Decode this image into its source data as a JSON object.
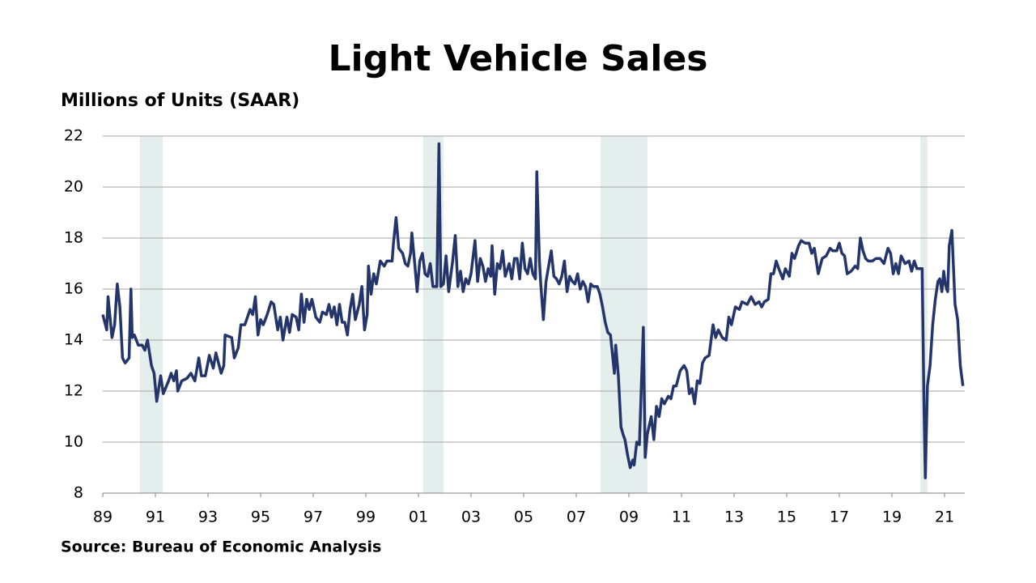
{
  "chart_data": {
    "type": "line",
    "title": "Light Vehicle Sales",
    "subtitle": "Millions of Units (SAAR)",
    "source": "Source: Bureau of Economic Analysis",
    "xlim": [
      1989,
      2021.77
    ],
    "ylim": [
      8,
      22
    ],
    "yticks": [
      8,
      10,
      12,
      14,
      16,
      18,
      20,
      22
    ],
    "xticks": [
      {
        "value": 1989,
        "label": "89"
      },
      {
        "value": 1991,
        "label": "91"
      },
      {
        "value": 1993,
        "label": "93"
      },
      {
        "value": 1995,
        "label": "95"
      },
      {
        "value": 1997,
        "label": "97"
      },
      {
        "value": 1999,
        "label": "99"
      },
      {
        "value": 2001,
        "label": "01"
      },
      {
        "value": 2003,
        "label": "03"
      },
      {
        "value": 2005,
        "label": "05"
      },
      {
        "value": 2007,
        "label": "07"
      },
      {
        "value": 2009,
        "label": "09"
      },
      {
        "value": 2011,
        "label": "11"
      },
      {
        "value": 2013,
        "label": "13"
      },
      {
        "value": 2015,
        "label": "15"
      },
      {
        "value": 2017,
        "label": "17"
      },
      {
        "value": 2019,
        "label": "19"
      },
      {
        "value": 2021,
        "label": "21"
      }
    ],
    "grid": true,
    "color": "#23356b",
    "recession_color": "#e4eeec",
    "recessions": [
      [
        1990.41,
        1991.28
      ],
      [
        2001.18,
        2001.95
      ],
      [
        2007.92,
        2009.71
      ],
      [
        2020.08,
        2020.35
      ]
    ],
    "x": [
      1989.0,
      1989.15,
      1989.2,
      1989.35,
      1989.45,
      1989.55,
      1989.65,
      1989.75,
      1989.85,
      1990.0,
      1990.07,
      1990.12,
      1990.2,
      1990.35,
      1990.5,
      1990.6,
      1990.7,
      1990.85,
      1990.95,
      1991.05,
      1991.2,
      1991.3,
      1991.5,
      1991.6,
      1991.7,
      1991.8,
      1991.85,
      1992.0,
      1992.2,
      1992.35,
      1992.5,
      1992.65,
      1992.75,
      1992.9,
      1993.05,
      1993.2,
      1993.3,
      1993.5,
      1993.6,
      1993.65,
      1993.9,
      1994.0,
      1994.15,
      1994.25,
      1994.4,
      1994.6,
      1994.7,
      1994.8,
      1994.9,
      1995.0,
      1995.1,
      1995.25,
      1995.4,
      1995.5,
      1995.65,
      1995.75,
      1995.85,
      1996.0,
      1996.1,
      1996.2,
      1996.35,
      1996.45,
      1996.55,
      1996.65,
      1996.75,
      1996.85,
      1996.95,
      1997.1,
      1997.25,
      1997.35,
      1997.5,
      1997.6,
      1997.7,
      1997.8,
      1997.9,
      1998.0,
      1998.1,
      1998.2,
      1998.3,
      1998.4,
      1998.5,
      1998.6,
      1998.75,
      1998.85,
      1998.95,
      1999.05,
      1999.1,
      1999.2,
      1999.3,
      1999.4,
      1999.55,
      1999.7,
      1999.8,
      2000.0,
      2000.05,
      2000.15,
      2000.25,
      2000.4,
      2000.5,
      2000.6,
      2000.7,
      2000.75,
      2000.85,
      2000.95,
      2001.05,
      2001.15,
      2001.25,
      2001.35,
      2001.45,
      2001.55,
      2001.7,
      2001.78,
      2001.85,
      2001.95,
      2002.05,
      2002.15,
      2002.3,
      2002.4,
      2002.5,
      2002.6,
      2002.7,
      2002.8,
      2002.9,
      2003.0,
      2003.15,
      2003.25,
      2003.35,
      2003.45,
      2003.55,
      2003.65,
      2003.75,
      2003.8,
      2003.9,
      2004.0,
      2004.1,
      2004.2,
      2004.3,
      2004.45,
      2004.55,
      2004.65,
      2004.75,
      2004.85,
      2004.95,
      2005.05,
      2005.15,
      2005.25,
      2005.35,
      2005.45,
      2005.5,
      2005.6,
      2005.65,
      2005.75,
      2005.85,
      2005.95,
      2006.05,
      2006.15,
      2006.25,
      2006.35,
      2006.45,
      2006.55,
      2006.65,
      2006.75,
      2006.85,
      2006.95,
      2007.05,
      2007.15,
      2007.25,
      2007.35,
      2007.45,
      2007.55,
      2007.65,
      2007.8,
      2007.9,
      2008.0,
      2008.1,
      2008.2,
      2008.3,
      2008.38,
      2008.45,
      2008.5,
      2008.6,
      2008.7,
      2008.78,
      2008.85,
      2008.95,
      2009.05,
      2009.15,
      2009.2,
      2009.3,
      2009.4,
      2009.55,
      2009.62,
      2009.7,
      2009.85,
      2009.95,
      2010.05,
      2010.15,
      2010.25,
      2010.35,
      2010.5,
      2010.6,
      2010.7,
      2010.8,
      2010.95,
      2011.1,
      2011.2,
      2011.3,
      2011.4,
      2011.5,
      2011.6,
      2011.7,
      2011.8,
      2011.9,
      2012.05,
      2012.2,
      2012.3,
      2012.4,
      2012.55,
      2012.7,
      2012.8,
      2012.9,
      2013.05,
      2013.2,
      2013.3,
      2013.5,
      2013.65,
      2013.8,
      2013.95,
      2014.05,
      2014.15,
      2014.3,
      2014.4,
      2014.5,
      2014.6,
      2014.7,
      2014.85,
      2014.95,
      2015.1,
      2015.2,
      2015.3,
      2015.45,
      2015.55,
      2015.7,
      2015.85,
      2015.95,
      2016.05,
      2016.2,
      2016.35,
      2016.5,
      2016.65,
      2016.75,
      2016.9,
      2017.0,
      2017.1,
      2017.2,
      2017.3,
      2017.45,
      2017.6,
      2017.7,
      2017.8,
      2017.9,
      2018.0,
      2018.1,
      2018.25,
      2018.4,
      2018.55,
      2018.7,
      2018.85,
      2018.95,
      2019.05,
      2019.15,
      2019.25,
      2019.35,
      2019.5,
      2019.65,
      2019.75,
      2019.85,
      2019.95,
      2020.05,
      2020.15,
      2020.22,
      2020.27,
      2020.35,
      2020.45,
      2020.55,
      2020.65,
      2020.75,
      2020.82,
      2020.9,
      2020.97,
      2021.03,
      2021.08,
      2021.12,
      2021.18,
      2021.28,
      2021.4,
      2021.5,
      2021.6,
      2021.7
    ],
    "values": [
      15.0,
      14.4,
      15.7,
      14.1,
      14.6,
      16.2,
      15.3,
      13.3,
      13.1,
      13.3,
      16.0,
      14.1,
      14.2,
      13.8,
      13.8,
      13.6,
      14.0,
      13.0,
      12.7,
      11.6,
      12.6,
      11.9,
      12.4,
      12.7,
      12.4,
      12.8,
      12.0,
      12.4,
      12.5,
      12.7,
      12.4,
      13.3,
      12.6,
      12.6,
      13.4,
      12.9,
      13.5,
      12.7,
      13.0,
      14.2,
      14.1,
      13.3,
      13.7,
      14.6,
      14.6,
      15.2,
      15.0,
      15.7,
      14.2,
      14.8,
      14.6,
      15.0,
      15.5,
      15.4,
      14.4,
      14.9,
      14.0,
      14.9,
      14.3,
      15.0,
      14.9,
      14.4,
      15.8,
      14.7,
      15.6,
      15.2,
      15.6,
      14.9,
      14.7,
      15.1,
      15.0,
      15.4,
      14.9,
      15.3,
      14.6,
      15.4,
      14.7,
      14.7,
      14.2,
      15.2,
      15.8,
      14.8,
      15.4,
      16.1,
      14.4,
      15.0,
      16.9,
      15.8,
      16.6,
      16.2,
      17.1,
      16.9,
      17.1,
      17.1,
      17.8,
      18.8,
      17.6,
      17.4,
      17.0,
      16.9,
      17.4,
      18.2,
      17.1,
      15.9,
      17.1,
      17.4,
      16.6,
      16.5,
      17.0,
      16.1,
      16.1,
      21.7,
      16.1,
      16.2,
      17.3,
      15.9,
      17.1,
      18.1,
      16.1,
      16.7,
      15.9,
      16.4,
      16.2,
      16.6,
      17.9,
      16.3,
      17.2,
      16.9,
      16.3,
      16.8,
      16.5,
      17.7,
      15.8,
      17.0,
      16.8,
      17.5,
      16.5,
      17.0,
      16.4,
      17.2,
      17.2,
      16.4,
      17.8,
      16.8,
      16.6,
      17.2,
      16.6,
      16.4,
      20.6,
      17.1,
      16.2,
      14.8,
      16.3,
      16.9,
      17.5,
      16.5,
      16.4,
      16.2,
      16.5,
      17.1,
      15.9,
      16.5,
      16.3,
      16.2,
      16.6,
      16.0,
      16.3,
      16.1,
      15.5,
      16.2,
      16.1,
      16.1,
      15.8,
      15.3,
      14.7,
      14.3,
      14.2,
      13.4,
      12.7,
      13.8,
      12.6,
      10.6,
      10.3,
      10.1,
      9.5,
      9.0,
      9.3,
      9.1,
      10.0,
      9.9,
      14.5,
      9.4,
      10.3,
      11.0,
      10.1,
      11.4,
      11.0,
      11.7,
      11.5,
      11.8,
      11.7,
      12.2,
      12.2,
      12.8,
      13.0,
      12.8,
      11.9,
      12.1,
      11.5,
      12.4,
      12.3,
      13.1,
      13.3,
      13.4,
      14.6,
      14.1,
      14.4,
      14.1,
      14.0,
      14.9,
      14.6,
      15.3,
      15.2,
      15.5,
      15.4,
      15.7,
      15.4,
      15.5,
      15.3,
      15.5,
      15.6,
      16.6,
      16.6,
      17.1,
      16.8,
      16.4,
      16.8,
      16.5,
      17.4,
      17.2,
      17.7,
      17.9,
      17.8,
      17.8,
      17.4,
      17.6,
      16.6,
      17.2,
      17.3,
      17.6,
      17.5,
      17.5,
      17.8,
      17.4,
      17.3,
      16.6,
      16.7,
      16.9,
      16.8,
      18.0,
      17.5,
      17.2,
      17.1,
      17.1,
      17.2,
      17.2,
      17.0,
      17.6,
      17.4,
      16.6,
      17.0,
      16.6,
      17.3,
      17.0,
      17.1,
      16.7,
      17.1,
      16.8,
      16.8,
      16.8,
      11.4,
      8.6,
      12.2,
      13.0,
      14.6,
      15.6,
      16.3,
      16.4,
      15.9,
      16.7,
      16.2,
      16.0,
      15.9,
      17.7,
      18.3,
      15.4,
      14.8,
      13.0,
      12.2
    ]
  }
}
